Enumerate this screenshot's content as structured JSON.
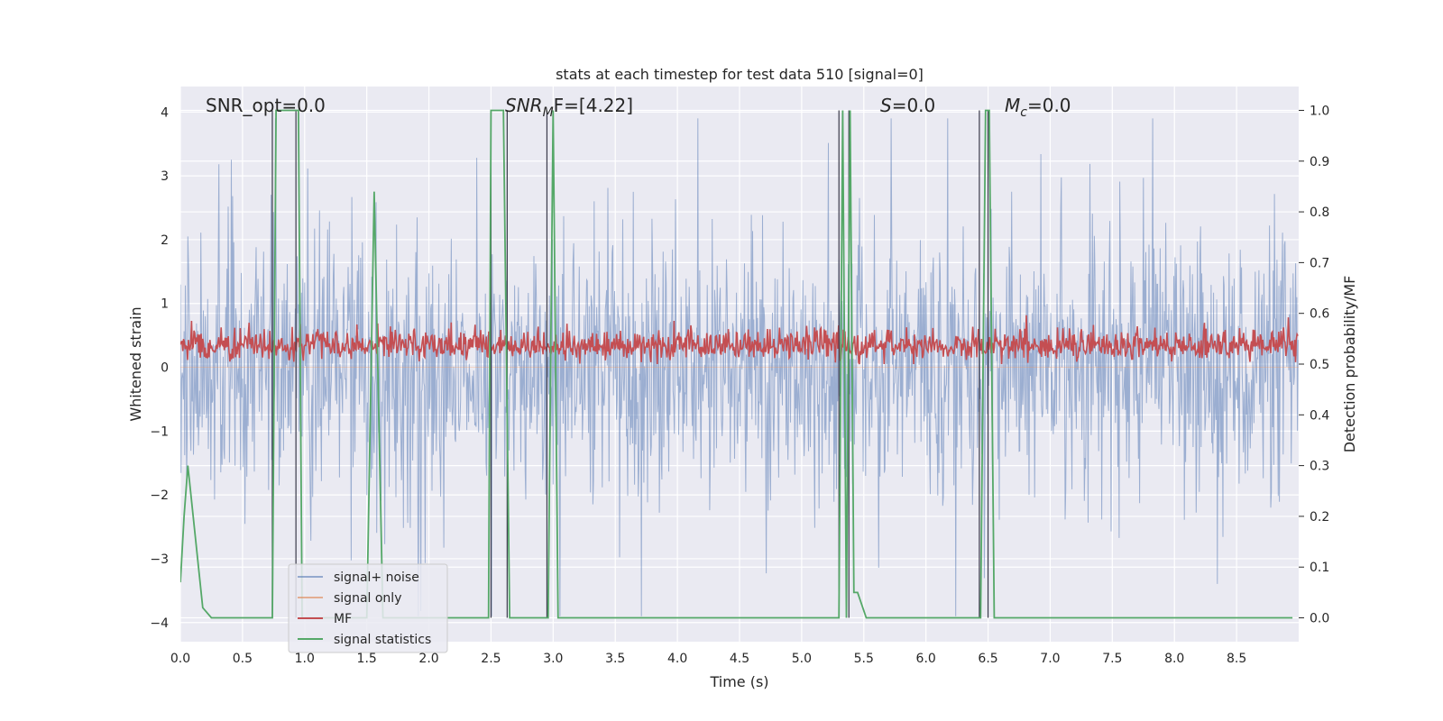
{
  "chart_data": {
    "type": "line",
    "title": "stats at each timestep for test data 510 [signal=0]",
    "xlabel": "Time (s)",
    "ylabel_left": "Whitened strain",
    "ylabel_right": "Detection probability/MF",
    "xlim": [
      0.0,
      9.0
    ],
    "ylim_left": [
      -4.3,
      4.4
    ],
    "ylim_right": [
      -0.047,
      1.047
    ],
    "x_ticks": [
      0.0,
      0.5,
      1.0,
      1.5,
      2.0,
      2.5,
      3.0,
      3.5,
      4.0,
      4.5,
      5.0,
      5.5,
      6.0,
      6.5,
      7.0,
      7.5,
      8.0,
      8.5
    ],
    "x_tick_labels": [
      "0.0",
      "0.5",
      "1.0",
      "1.5",
      "2.0",
      "2.5",
      "3.0",
      "3.5",
      "4.0",
      "4.5",
      "5.0",
      "5.5",
      "6.0",
      "6.5",
      "7.0",
      "7.5",
      "8.0",
      "8.5"
    ],
    "y_left_ticks": [
      4,
      3,
      2,
      1,
      0,
      -1,
      -2,
      -3,
      -4
    ],
    "y_left_tick_labels": [
      "4",
      "3",
      "2",
      "1",
      "0",
      "−1",
      "−2",
      "−3",
      "−4"
    ],
    "y_right_ticks": [
      1.0,
      0.9,
      0.8,
      0.7,
      0.6,
      0.5,
      0.4,
      0.3,
      0.2,
      0.1,
      0.0
    ],
    "y_right_tick_labels": [
      "1.0",
      "0.9",
      "0.8",
      "0.7",
      "0.6",
      "0.5",
      "0.4",
      "0.3",
      "0.2",
      "0.1",
      "0.0"
    ],
    "grid": true,
    "legend_position": "lower-left",
    "annotations": {
      "snr_opt": "SNR_opt=0.0",
      "snr_mf_main": "SNR",
      "snr_mf_sub": "M",
      "snr_mf_rest": "F=[4.22]",
      "s_main": "S",
      "s_rest": "=0.0",
      "mc_main": "M",
      "mc_sub": "c",
      "mc_rest": "=0.0"
    },
    "series": [
      {
        "name": "signal+ noise",
        "axis": "left",
        "color": "#4c72b0",
        "note_values": "dense Gaussian-like noise, roughly within -3.9 to 3.9"
      },
      {
        "name": "signal only",
        "axis": "left",
        "color": "#dd8452",
        "values": "zero (no signal)"
      },
      {
        "name": "MF",
        "axis": "right",
        "color": "#c44e52",
        "note_values": "fluctuates roughly between 0.5 and 0.6"
      },
      {
        "name": "signal statistics",
        "axis": "right",
        "color": "#55a868",
        "x": [
          0.0,
          0.03,
          0.06,
          0.18,
          0.25,
          0.74,
          0.77,
          0.8,
          0.92,
          0.95,
          0.98,
          1.5,
          1.56,
          1.63,
          2.48,
          2.5,
          2.53,
          2.6,
          2.65,
          2.96,
          3.0,
          3.04,
          6.36,
          2.7,
          5.3,
          5.33,
          5.36,
          5.39,
          5.42,
          5.45,
          5.52,
          6.44,
          6.48,
          6.51,
          6.55,
          8.95
        ],
        "values": [
          0.07,
          0.2,
          0.3,
          0.02,
          0.0,
          0.0,
          1.0,
          1.0,
          1.0,
          1.0,
          0.0,
          0.0,
          0.84,
          0.0,
          0.0,
          1.0,
          1.0,
          1.0,
          0.0,
          0.0,
          1.0,
          0.0,
          0.0,
          0.0,
          0.0,
          1.0,
          0.0,
          1.0,
          0.05,
          0.05,
          0.0,
          0.0,
          1.0,
          1.0,
          0.0,
          0.0
        ]
      }
    ]
  }
}
